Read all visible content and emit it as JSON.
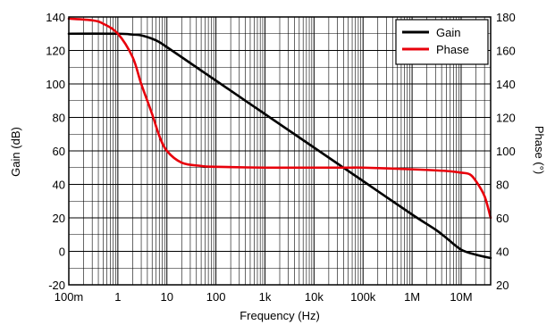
{
  "chart_data": {
    "type": "line",
    "xlabel": "Frequency (Hz)",
    "ylabel": "Gain (dB)",
    "ylabel_right": "Phase (°)",
    "x_scale": "log",
    "xlim": [
      0.1,
      40000000
    ],
    "ylim": [
      -20,
      140
    ],
    "ylim_right": [
      20,
      180
    ],
    "grid": true,
    "legend_position": "top-right",
    "x_ticks": [
      {
        "value": 0.1,
        "label": "100m"
      },
      {
        "value": 1,
        "label": "1"
      },
      {
        "value": 10,
        "label": "10"
      },
      {
        "value": 100,
        "label": "100"
      },
      {
        "value": 1000,
        "label": "1k"
      },
      {
        "value": 10000,
        "label": "10k"
      },
      {
        "value": 100000,
        "label": "100k"
      },
      {
        "value": 1000000,
        "label": "1M"
      },
      {
        "value": 10000000,
        "label": "10M"
      }
    ],
    "y_ticks": [
      "-20",
      "0",
      "20",
      "40",
      "60",
      "80",
      "100",
      "120",
      "140"
    ],
    "y_ticks_right": [
      "20",
      "40",
      "60",
      "80",
      "100",
      "120",
      "140",
      "160",
      "180"
    ],
    "series": [
      {
        "name": "Gain",
        "axis": "left",
        "color": "#000000",
        "x": [
          0.1,
          1,
          2,
          3,
          5,
          7,
          10,
          20,
          50,
          100,
          1000,
          10000,
          100000,
          1000000,
          3000000,
          5000000,
          10000000,
          20000000,
          40000000
        ],
        "y": [
          130,
          130,
          129.5,
          129,
          127,
          125,
          122,
          116,
          108,
          102,
          82,
          62,
          42,
          22,
          13,
          8,
          1,
          -2,
          -4
        ]
      },
      {
        "name": "Phase",
        "axis": "right",
        "color": "#e8000b",
        "x": [
          0.1,
          0.3,
          0.5,
          1,
          2,
          3,
          5,
          7,
          10,
          20,
          50,
          100,
          1000,
          10000,
          50000,
          100000,
          1000000,
          5000000,
          10000000,
          15000000,
          20000000,
          30000000,
          40000000
        ],
        "y": [
          179,
          178,
          176,
          170,
          156,
          140,
          122,
          109,
          100,
          93,
          91,
          90.5,
          90,
          90,
          90,
          90,
          89,
          88,
          87,
          86,
          82,
          73,
          60
        ]
      }
    ]
  }
}
